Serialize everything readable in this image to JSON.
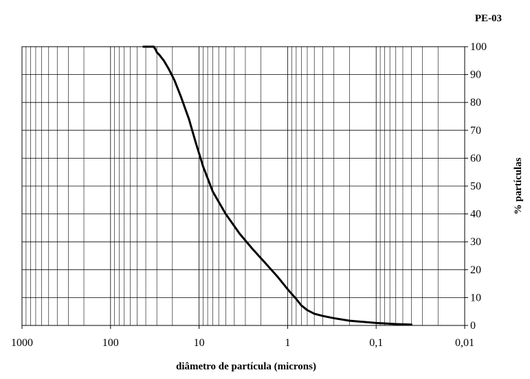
{
  "chart_data": {
    "type": "line",
    "title": "PE-03",
    "xlabel": "diâmetro de partícula (microns)",
    "ylabel": "% partículas",
    "x_scale": "log",
    "x_reversed": true,
    "xlim": [
      1000,
      0.01
    ],
    "ylim": [
      0,
      100
    ],
    "grid": true,
    "x_ticks": [
      1000,
      100,
      10,
      1,
      0.1,
      0.01
    ],
    "x_tick_labels": [
      "1000",
      "100",
      "10",
      "1",
      "0,1",
      "0,01"
    ],
    "y_ticks": [
      0,
      10,
      20,
      30,
      40,
      50,
      60,
      70,
      80,
      90,
      100
    ],
    "y_tick_labels": [
      "0",
      "10",
      "20",
      "30",
      "40",
      "50",
      "60",
      "70",
      "80",
      "90",
      "100"
    ],
    "series": [
      {
        "color": "#000000",
        "x": [
          42.5,
          32.5,
          31,
          30,
          28,
          25,
          22,
          19,
          16,
          13,
          11,
          9,
          7,
          5,
          3.5,
          2.5,
          1.8,
          1.3,
          1,
          0.8,
          0.7,
          0.6,
          0.5,
          0.4,
          0.3,
          0.2,
          0.1,
          0.06,
          0.04
        ],
        "y": [
          100,
          100,
          99,
          98,
          97,
          95,
          92,
          88,
          82,
          74,
          66,
          57,
          48,
          40,
          33,
          27.5,
          22.5,
          17.5,
          13,
          9.5,
          7.2,
          5.5,
          4.2,
          3.4,
          2.6,
          1.7,
          0.9,
          0.5,
          0.3
        ]
      }
    ]
  }
}
